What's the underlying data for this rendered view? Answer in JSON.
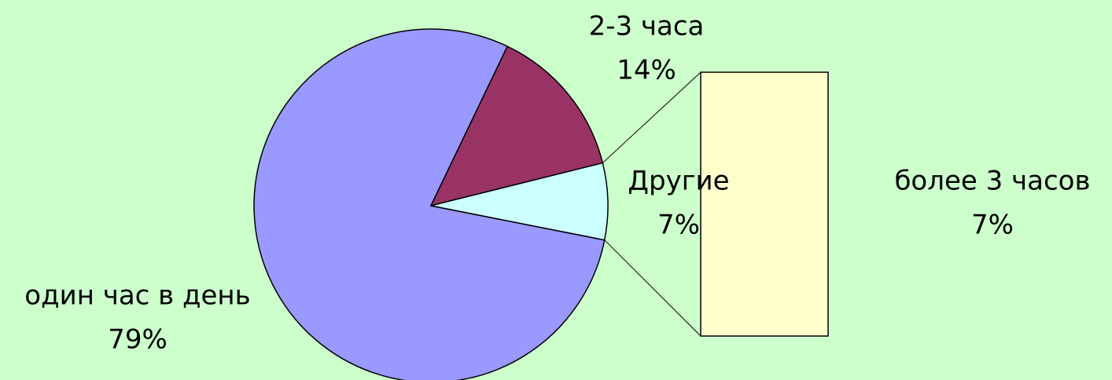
{
  "chart_data": {
    "type": "pie",
    "categories": [
      "один час в день",
      "2-3 часа",
      "Другие"
    ],
    "values": [
      79,
      14,
      7
    ],
    "value_labels": [
      "79%",
      "14%",
      "7%"
    ],
    "colors": [
      "#9999ff",
      "#993366",
      "#ccffff"
    ],
    "bar_of_pie": {
      "categories": [
        "более 3 часов"
      ],
      "values": [
        7
      ],
      "value_labels": [
        "7%"
      ],
      "colors": [
        "#ffffcc"
      ]
    }
  }
}
